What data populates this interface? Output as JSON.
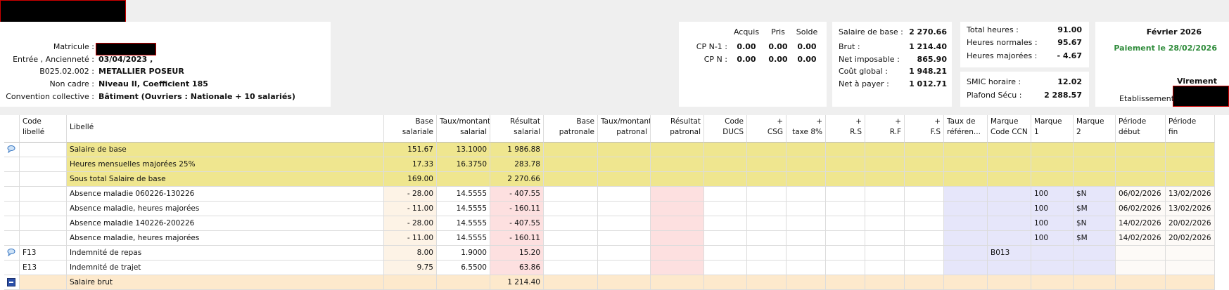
{
  "employee": {
    "rows": [
      {
        "label": "Matricule :"
      },
      {
        "label": "Entrée , Ancienneté :",
        "value": "03/04/2023 ,"
      },
      {
        "label": "B025.02.002 :",
        "value": "METALLIER POSEUR"
      },
      {
        "label": "Non cadre :",
        "value": "Niveau II, Coefficient 185"
      },
      {
        "label": "Convention collective :",
        "value": "Bâtiment (Ouvriers : Nationale + 10 salariés)"
      }
    ]
  },
  "cp": {
    "columns": [
      "Acquis",
      "Pris",
      "Solde"
    ],
    "rows": [
      {
        "label": "CP N-1 :",
        "values": [
          "0.00",
          "0.00",
          "0.00"
        ]
      },
      {
        "label": "CP N :",
        "values": [
          "0.00",
          "0.00",
          "0.00"
        ]
      }
    ]
  },
  "salary": [
    {
      "label": "Salaire de base :",
      "value": "2 270.66"
    },
    {
      "label": "Brut :",
      "value": "1 214.40"
    },
    {
      "label": "Net imposable :",
      "value": "865.90"
    },
    {
      "label": "Coût global :",
      "value": "1 948.21"
    },
    {
      "label": "Net à payer :",
      "value": "1 012.71"
    }
  ],
  "hours": [
    {
      "label": "Total heures :",
      "value": "91.00"
    },
    {
      "label": "Heures normales :",
      "value": "95.67"
    },
    {
      "label": "Heures majorées :",
      "value": "- 4.67"
    }
  ],
  "rates": [
    {
      "label": "SMIC horaire :",
      "value": "12.02"
    },
    {
      "label": "Plafond Sécu :",
      "value": "2 288.57"
    }
  ],
  "period": {
    "month": "Février 2026",
    "payment": "Paiement le 28/02/2026",
    "method": "Virement",
    "establishment": "Etablissement :"
  },
  "table": {
    "columns": [
      [
        "Code",
        "libellé"
      ],
      [
        "Libellé"
      ],
      [
        "Base",
        "salariale"
      ],
      [
        "Taux/montant",
        "salarial"
      ],
      [
        "Résultat",
        "salarial"
      ],
      [
        "Base",
        "patronale"
      ],
      [
        "Taux/montant",
        "patronal"
      ],
      [
        "Résultat",
        "patronal"
      ],
      [
        "Code",
        "DUCS"
      ],
      [
        "+",
        "CSG"
      ],
      [
        "+",
        "taxe 8%"
      ],
      [
        "+",
        "R.S"
      ],
      [
        "+",
        "R.F"
      ],
      [
        "+",
        "F.S"
      ],
      [
        "Taux de",
        "référen..."
      ],
      [
        "Marque",
        "Code CCN"
      ],
      [
        "Marque",
        "1"
      ],
      [
        "Marque",
        "2"
      ],
      [
        "Période",
        "début"
      ],
      [
        "Période",
        "fin"
      ]
    ],
    "rows": [
      {
        "style": "base",
        "icon": "comment",
        "cells": [
          null,
          "Salaire de base",
          "151.67",
          "13.1000",
          "1 986.88",
          null,
          null,
          null,
          null,
          null,
          null,
          null,
          null,
          null,
          null,
          null,
          null,
          null,
          null,
          null
        ]
      },
      {
        "style": "base",
        "cells": [
          null,
          "Heures mensuelles majorées 25%",
          "17.33",
          "16.3750",
          "283.78",
          null,
          null,
          null,
          null,
          null,
          null,
          null,
          null,
          null,
          null,
          null,
          null,
          null,
          null,
          null
        ]
      },
      {
        "style": "base",
        "cells": [
          null,
          "Sous total Salaire de base",
          "169.00",
          null,
          "2 270.66",
          null,
          null,
          null,
          null,
          null,
          null,
          null,
          null,
          null,
          null,
          null,
          null,
          null,
          null,
          null
        ]
      },
      {
        "style": "line",
        "cells": [
          null,
          "Absence maladie 060226-130226",
          "- 28.00",
          "14.5555",
          "- 407.55",
          null,
          null,
          null,
          null,
          null,
          null,
          null,
          null,
          null,
          null,
          null,
          "100",
          "$N",
          "06/02/2026",
          "13/02/2026"
        ]
      },
      {
        "style": "line",
        "cells": [
          null,
          "Absence maladie, heures majorées",
          "- 11.00",
          "14.5555",
          "- 160.11",
          null,
          null,
          null,
          null,
          null,
          null,
          null,
          null,
          null,
          null,
          null,
          "100",
          "$M",
          "06/02/2026",
          "13/02/2026"
        ]
      },
      {
        "style": "line",
        "cells": [
          null,
          "Absence maladie 140226-200226",
          "- 28.00",
          "14.5555",
          "- 407.55",
          null,
          null,
          null,
          null,
          null,
          null,
          null,
          null,
          null,
          null,
          null,
          "100",
          "$N",
          "14/02/2026",
          "20/02/2026"
        ]
      },
      {
        "style": "line",
        "cells": [
          null,
          "Absence maladie, heures majorées",
          "- 11.00",
          "14.5555",
          "- 160.11",
          null,
          null,
          null,
          null,
          null,
          null,
          null,
          null,
          null,
          null,
          null,
          "100",
          "$M",
          "14/02/2026",
          "20/02/2026"
        ]
      },
      {
        "style": "line",
        "icon": "comment",
        "cells": [
          "F13",
          "Indemnité de repas",
          "8.00",
          "1.9000",
          "15.20",
          null,
          null,
          null,
          null,
          null,
          null,
          null,
          null,
          null,
          null,
          "B013",
          null,
          null,
          null,
          null
        ]
      },
      {
        "style": "line",
        "cells": [
          "E13",
          "Indemnité de trajet",
          "9.75",
          "6.5500",
          "63.86",
          null,
          null,
          null,
          null,
          null,
          null,
          null,
          null,
          null,
          null,
          null,
          null,
          null,
          null,
          null
        ]
      },
      {
        "style": "total",
        "icon": "minus",
        "cells": [
          null,
          "Salaire brut",
          null,
          null,
          "1 214.40",
          null,
          null,
          null,
          null,
          null,
          null,
          null,
          null,
          null,
          null,
          null,
          null,
          null,
          null,
          null
        ]
      }
    ]
  }
}
